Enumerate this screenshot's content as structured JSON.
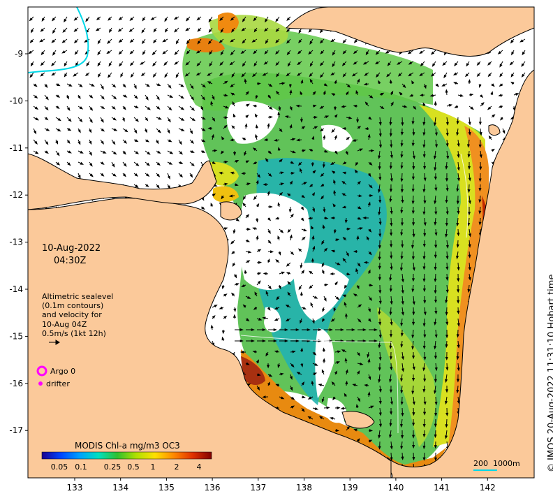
{
  "map": {
    "colors": {
      "land": "#fbc99a",
      "coast": "#000000",
      "no_data": "#ffffff",
      "argo": "#ff00ff",
      "drifter": "#ff00ff",
      "track": "#00d8e8"
    },
    "lon_ticks": [
      "133",
      "134",
      "135",
      "136",
      "137",
      "138",
      "139",
      "140",
      "141",
      "142"
    ],
    "lat_ticks": [
      "-9",
      "-10",
      "-11",
      "-12",
      "-13",
      "-14",
      "-15",
      "-16",
      "-17"
    ]
  },
  "annotation": {
    "date": "10-Aug-2022",
    "time": "04:30Z",
    "lines": [
      "Altimetric sealevel",
      "(0.1m contours)",
      "and velocity for",
      "10-Aug 04Z",
      "0.5m/s (1kt 12h)"
    ]
  },
  "legend": {
    "argo": "Argo 0",
    "drifter": "drifter"
  },
  "colorbar": {
    "title": "MODIS Chl-a mg/m3 OC3",
    "ticks": [
      "0.05",
      "0.1",
      "0.25",
      "0.5",
      "1",
      "2",
      "4"
    ],
    "stops": [
      "#1a0090",
      "#0044ff",
      "#00a0ff",
      "#00e0c0",
      "#30c030",
      "#b0e000",
      "#ffe000",
      "#ff8800",
      "#e03000",
      "#800000"
    ]
  },
  "scale": {
    "label": "200  1000m"
  },
  "copyright": "© IMOS 20-Aug-2022 11:31:10 Hobart time"
}
